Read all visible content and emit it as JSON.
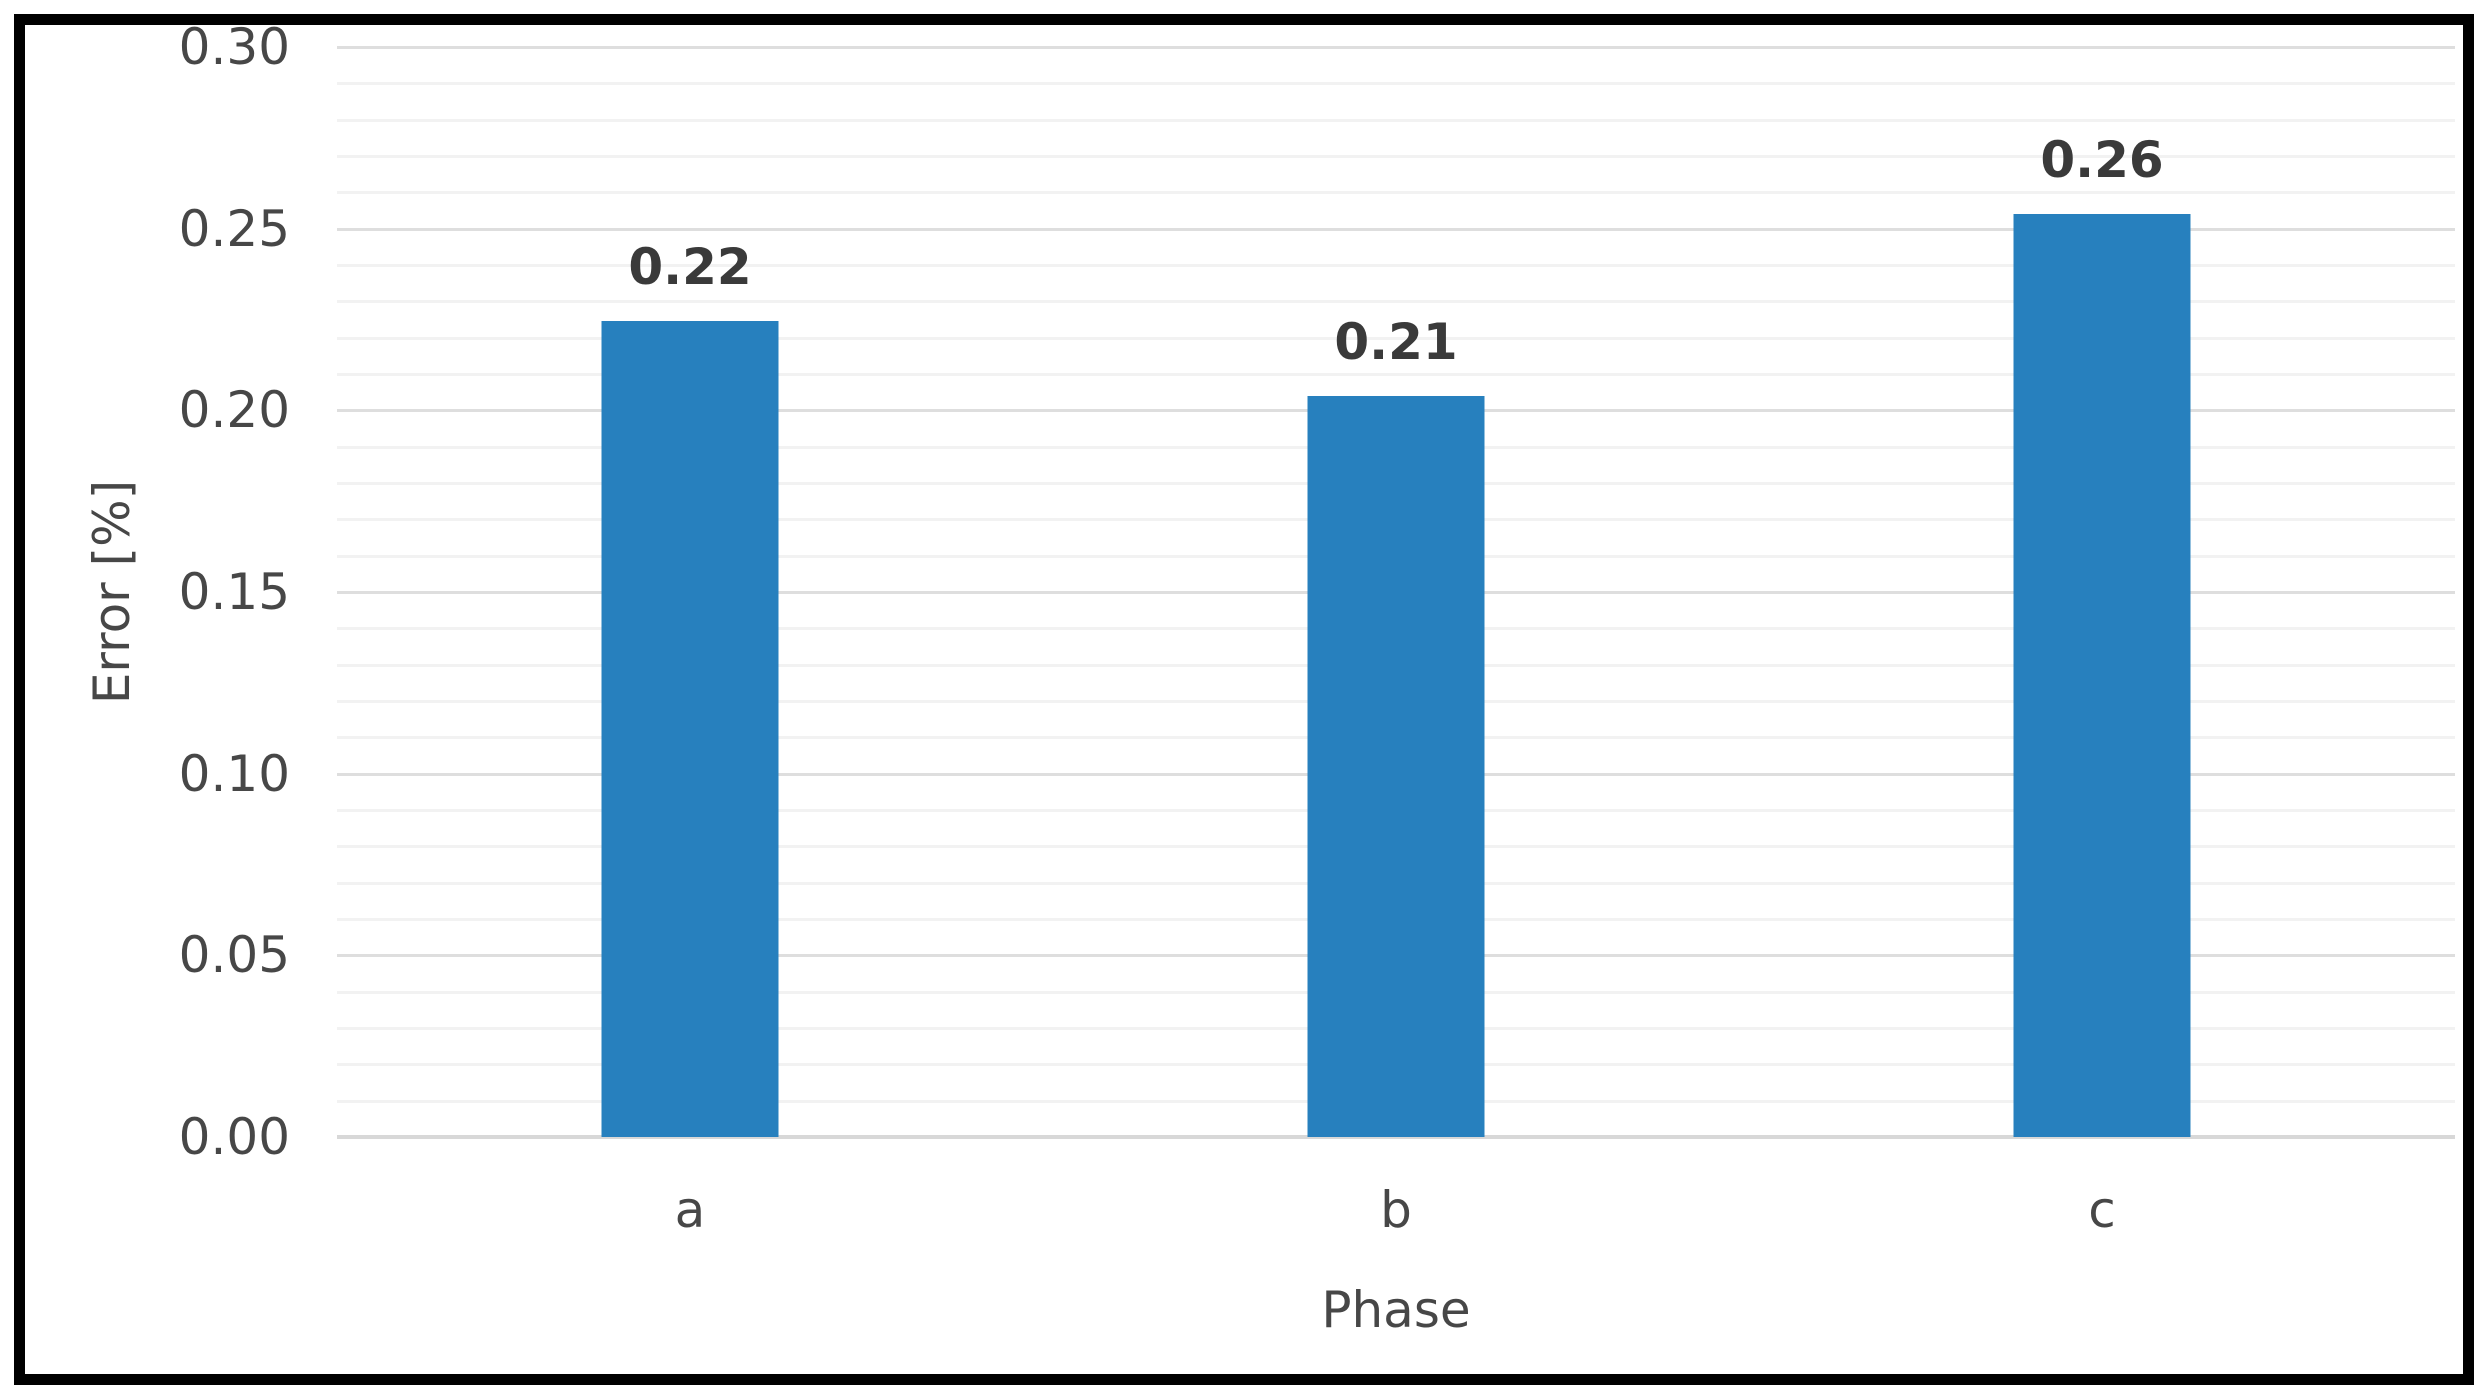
{
  "chart_data": {
    "type": "bar",
    "title": "",
    "xlabel": "Phase",
    "ylabel": "Error [%]",
    "categories": [
      "a",
      "b",
      "c"
    ],
    "values": [
      0.22,
      0.21,
      0.26
    ],
    "data_labels": [
      "0.22",
      "0.21",
      "0.26"
    ],
    "values_plotted_estimate": [
      0.2245,
      0.204,
      0.254
    ],
    "ylim": [
      0,
      0.3
    ],
    "ytick_step_major": 0.05,
    "ytick_step_minor": 0.01,
    "ytick_labels": [
      "0.00",
      "0.05",
      "0.10",
      "0.15",
      "0.20",
      "0.25",
      "0.30"
    ],
    "grid": "horizontal major+minor",
    "legend": "none",
    "colors": {
      "bar": "#2780BE",
      "major_grid": "#DEDEDE",
      "minor_grid": "#F2F2F2",
      "axis_line": "#D8D8D8",
      "tick_text": "#474747",
      "data_label": "#3A3A3A",
      "frame_border": "#000000",
      "background": "#FFFFFF"
    }
  }
}
